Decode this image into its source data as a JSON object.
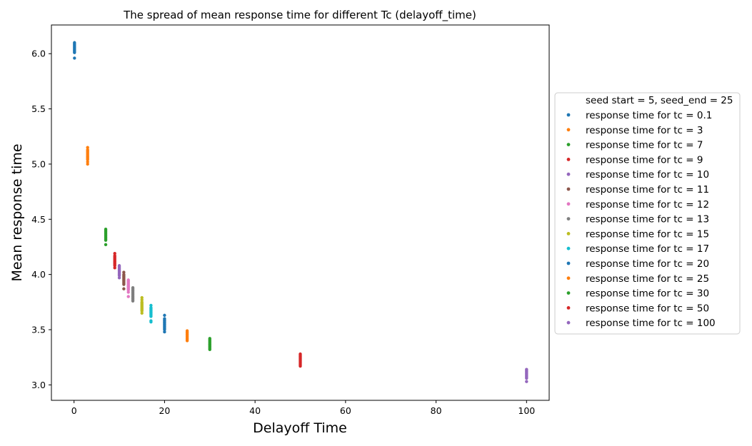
{
  "chart_data": {
    "type": "scatter",
    "title": "The spread of mean response time for different Tc (delayoff_time)",
    "xlabel": "Delayoff Time",
    "ylabel": "Mean response time",
    "xlim": [
      -5,
      105
    ],
    "ylim": [
      2.86,
      6.26
    ],
    "xticks": [
      0,
      20,
      40,
      60,
      80,
      100
    ],
    "xtick_labels": [
      "0",
      "20",
      "40",
      "60",
      "80",
      "100"
    ],
    "yticks": [
      3.0,
      3.5,
      4.0,
      4.5,
      5.0,
      5.5,
      6.0
    ],
    "ytick_labels": [
      "3.0",
      "3.5",
      "4.0",
      "4.5",
      "5.0",
      "5.5",
      "6.0"
    ],
    "grid": false,
    "legend": {
      "placement": "right-outside",
      "header": "seed start = 5, seed_end = 25"
    },
    "series": [
      {
        "name": "response time for tc = 0.1",
        "color": "#1f77b4",
        "x": 0.1,
        "y": [
          5.96,
          6.01,
          6.02,
          6.03,
          6.04,
          6.05,
          6.06,
          6.07,
          6.08,
          6.09,
          6.1
        ]
      },
      {
        "name": "response time for tc = 3",
        "color": "#ff7f0e",
        "x": 3,
        "y": [
          5.0,
          5.02,
          5.04,
          5.05,
          5.06,
          5.07,
          5.08,
          5.09,
          5.1,
          5.11,
          5.12,
          5.13,
          5.15
        ]
      },
      {
        "name": "response time for tc = 7",
        "color": "#2ca02c",
        "x": 7,
        "y": [
          4.27,
          4.31,
          4.32,
          4.33,
          4.34,
          4.35,
          4.36,
          4.37,
          4.38,
          4.39,
          4.4,
          4.41
        ]
      },
      {
        "name": "response time for tc = 9",
        "color": "#d62728",
        "x": 9,
        "y": [
          4.06,
          4.08,
          4.09,
          4.1,
          4.11,
          4.12,
          4.13,
          4.14,
          4.15,
          4.16,
          4.17,
          4.19
        ]
      },
      {
        "name": "response time for tc = 10",
        "color": "#9467bd",
        "x": 10,
        "y": [
          3.97,
          3.99,
          4.0,
          4.01,
          4.02,
          4.03,
          4.04,
          4.05,
          4.06,
          4.07,
          4.08
        ]
      },
      {
        "name": "response time for tc = 11",
        "color": "#8c564b",
        "x": 11,
        "y": [
          3.87,
          3.91,
          3.92,
          3.93,
          3.94,
          3.95,
          3.96,
          3.97,
          3.98,
          3.99,
          4.0,
          4.02
        ]
      },
      {
        "name": "response time for tc = 12",
        "color": "#e377c2",
        "x": 12,
        "y": [
          3.8,
          3.84,
          3.86,
          3.87,
          3.88,
          3.89,
          3.9,
          3.91,
          3.92,
          3.93,
          3.94,
          3.95
        ]
      },
      {
        "name": "response time for tc = 13",
        "color": "#7f7f7f",
        "x": 13,
        "y": [
          3.76,
          3.77,
          3.78,
          3.79,
          3.8,
          3.81,
          3.82,
          3.83,
          3.84,
          3.85,
          3.86,
          3.87,
          3.88
        ]
      },
      {
        "name": "response time for tc = 15",
        "color": "#bcbd22",
        "x": 15,
        "y": [
          3.65,
          3.67,
          3.68,
          3.69,
          3.7,
          3.71,
          3.72,
          3.73,
          3.74,
          3.75,
          3.77,
          3.79
        ]
      },
      {
        "name": "response time for tc = 17",
        "color": "#17becf",
        "x": 17,
        "y": [
          3.57,
          3.58,
          3.62,
          3.63,
          3.64,
          3.65,
          3.66,
          3.67,
          3.68,
          3.69,
          3.7,
          3.72
        ]
      },
      {
        "name": "response time for tc = 20",
        "color": "#1f77b4",
        "x": 20,
        "y": [
          3.48,
          3.5,
          3.51,
          3.52,
          3.53,
          3.54,
          3.55,
          3.56,
          3.57,
          3.58,
          3.59,
          3.6,
          3.63
        ]
      },
      {
        "name": "response time for tc = 25",
        "color": "#ff7f0e",
        "x": 25,
        "y": [
          3.4,
          3.41,
          3.42,
          3.43,
          3.44,
          3.45,
          3.46,
          3.47,
          3.48,
          3.49
        ]
      },
      {
        "name": "response time for tc = 30",
        "color": "#2ca02c",
        "x": 30,
        "y": [
          3.32,
          3.33,
          3.34,
          3.35,
          3.36,
          3.37,
          3.38,
          3.39,
          3.4,
          3.41,
          3.42
        ]
      },
      {
        "name": "response time for tc = 50",
        "color": "#d62728",
        "x": 50,
        "y": [
          3.17,
          3.18,
          3.19,
          3.2,
          3.21,
          3.22,
          3.23,
          3.24,
          3.25,
          3.26,
          3.27,
          3.28
        ]
      },
      {
        "name": "response time for tc = 100",
        "color": "#9467bd",
        "x": 100,
        "y": [
          3.03,
          3.06,
          3.07,
          3.08,
          3.09,
          3.1,
          3.11,
          3.12,
          3.13,
          3.14
        ]
      }
    ]
  }
}
